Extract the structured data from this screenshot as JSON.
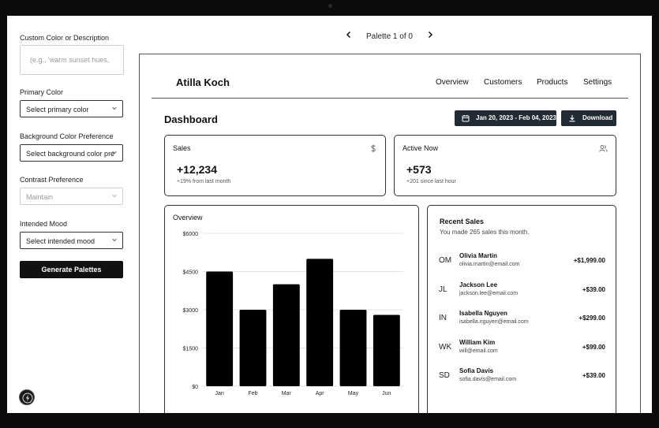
{
  "sidebar": {
    "custom_label": "Custom Color or Description",
    "custom_placeholder": "(e.g., 'warm sunset hues, ",
    "primary_label": "Primary Color",
    "primary_value": "Select primary color",
    "background_label": "Background Color Preference",
    "background_value": "Select background color pre",
    "contrast_label": "Contrast Preference",
    "contrast_value": "Maintain",
    "mood_label": "Intended Mood",
    "mood_value": "Select intended mood",
    "generate_label": "Generate Palettes"
  },
  "palette_nav": {
    "label": "Palette 1 of 0"
  },
  "preview": {
    "brand": "Atilla Koch",
    "nav": [
      "Overview",
      "Customers",
      "Products",
      "Settings"
    ],
    "dashboard_title": "Dashboard",
    "date_range": "Jan 20, 2023 - Feb 04, 2023",
    "download_label": "Download",
    "sales_card": {
      "title": "Sales",
      "value": "+12,234",
      "sub": "+19% from last month",
      "icon": "dollar-icon"
    },
    "active_card": {
      "title": "Active Now",
      "value": "+573",
      "sub": "+201 since last hour",
      "icon": "users-icon"
    },
    "overview_title": "Overview",
    "recent_sales": {
      "title": "Recent Sales",
      "subtitle": "You made 265 sales this month.",
      "items": [
        {
          "initials": "OM",
          "name": "Olivia Martin",
          "email": "olivia.martin@email.com",
          "amount": "+$1,999.00"
        },
        {
          "initials": "JL",
          "name": "Jackson Lee",
          "email": "jackson.lee@email.com",
          "amount": "+$39.00"
        },
        {
          "initials": "IN",
          "name": "Isabella Nguyen",
          "email": "isabella.nguyen@email.com",
          "amount": "+$299.00"
        },
        {
          "initials": "WK",
          "name": "William Kim",
          "email": "will@email.com",
          "amount": "+$99.00"
        },
        {
          "initials": "SD",
          "name": "Sofia Davis",
          "email": "sofia.davis@email.com",
          "amount": "+$39.00"
        }
      ]
    }
  },
  "chart_data": {
    "type": "bar",
    "categories": [
      "Jan",
      "Feb",
      "Mar",
      "Apr",
      "May",
      "Jun"
    ],
    "values": [
      4500,
      3000,
      4000,
      5000,
      3000,
      2800
    ],
    "yticks": [
      "$6000",
      "$4500",
      "$3000",
      "$1500",
      "$0"
    ],
    "ylim": [
      0,
      6000
    ],
    "grid": true,
    "bar_color": "#000000"
  }
}
